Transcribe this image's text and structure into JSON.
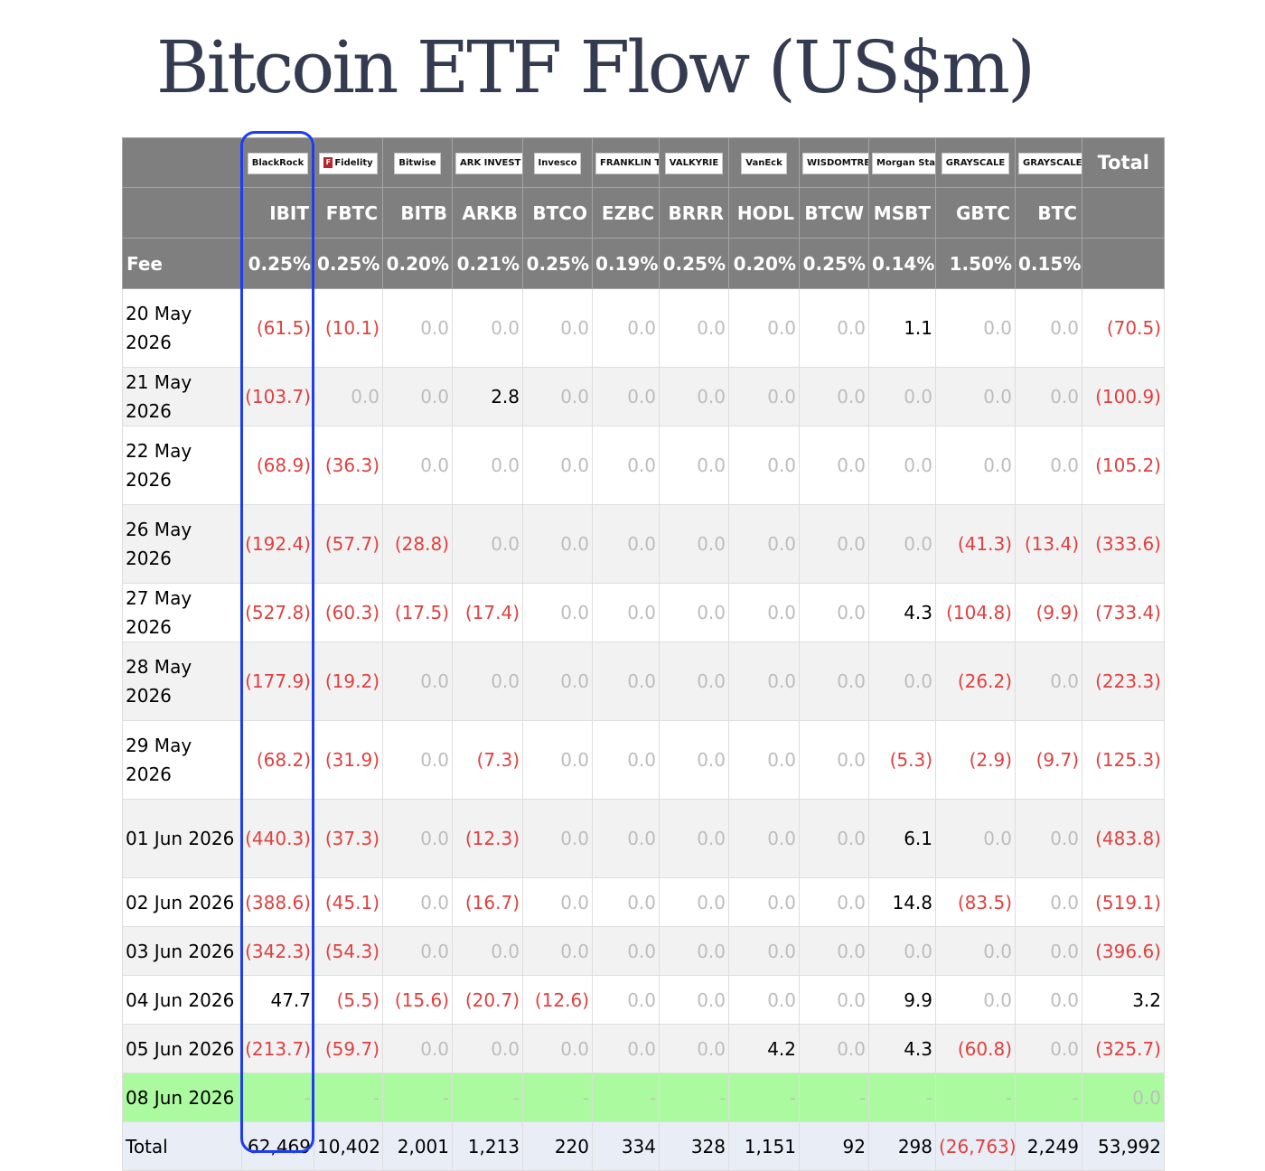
{
  "title": "Bitcoin ETF Flow (US$m)",
  "logos": [
    "BlackRock",
    "Fidelity",
    "Bitwise",
    "ARK INVEST",
    "Invesco",
    "FRANKLIN TEMPLETON",
    "VALKYRIE",
    "VanEck",
    "WISDOMTREE",
    "Morgan Stanley",
    "GRAYSCALE",
    "GRAYSCALE"
  ],
  "total_header": "Total",
  "tickers": [
    "IBIT",
    "FBTC",
    "BITB",
    "ARKB",
    "BTCO",
    "EZBC",
    "BRRR",
    "HODL",
    "BTCW",
    "MSBT",
    "GBTC",
    "BTC"
  ],
  "fee_label": "Fee",
  "fees": [
    "0.25%",
    "0.25%",
    "0.20%",
    "0.21%",
    "0.25%",
    "0.19%",
    "0.25%",
    "0.20%",
    "0.25%",
    "0.14%",
    "1.50%",
    "0.15%"
  ],
  "rows": [
    {
      "date": "20 May 2026",
      "values": [
        "(61.5)",
        "(10.1)",
        "0.0",
        "0.0",
        "0.0",
        "0.0",
        "0.0",
        "0.0",
        "0.0",
        "1.1",
        "0.0",
        "0.0"
      ],
      "total": "(70.5)"
    },
    {
      "date": "21 May 2026",
      "values": [
        "(103.7)",
        "0.0",
        "0.0",
        "2.8",
        "0.0",
        "0.0",
        "0.0",
        "0.0",
        "0.0",
        "0.0",
        "0.0",
        "0.0"
      ],
      "total": "(100.9)"
    },
    {
      "date": "22 May 2026",
      "values": [
        "(68.9)",
        "(36.3)",
        "0.0",
        "0.0",
        "0.0",
        "0.0",
        "0.0",
        "0.0",
        "0.0",
        "0.0",
        "0.0",
        "0.0"
      ],
      "total": "(105.2)"
    },
    {
      "date": "26 May 2026",
      "values": [
        "(192.4)",
        "(57.7)",
        "(28.8)",
        "0.0",
        "0.0",
        "0.0",
        "0.0",
        "0.0",
        "0.0",
        "0.0",
        "(41.3)",
        "(13.4)"
      ],
      "total": "(333.6)"
    },
    {
      "date": "27 May 2026",
      "values": [
        "(527.8)",
        "(60.3)",
        "(17.5)",
        "(17.4)",
        "0.0",
        "0.0",
        "0.0",
        "0.0",
        "0.0",
        "4.3",
        "(104.8)",
        "(9.9)"
      ],
      "total": "(733.4)"
    },
    {
      "date": "28 May 2026",
      "values": [
        "(177.9)",
        "(19.2)",
        "0.0",
        "0.0",
        "0.0",
        "0.0",
        "0.0",
        "0.0",
        "0.0",
        "0.0",
        "(26.2)",
        "0.0"
      ],
      "total": "(223.3)"
    },
    {
      "date": "29 May 2026",
      "values": [
        "(68.2)",
        "(31.9)",
        "0.0",
        "(7.3)",
        "0.0",
        "0.0",
        "0.0",
        "0.0",
        "0.0",
        "(5.3)",
        "(2.9)",
        "(9.7)"
      ],
      "total": "(125.3)"
    },
    {
      "date": "01 Jun 2026",
      "values": [
        "(440.3)",
        "(37.3)",
        "0.0",
        "(12.3)",
        "0.0",
        "0.0",
        "0.0",
        "0.0",
        "0.0",
        "6.1",
        "0.0",
        "0.0"
      ],
      "total": "(483.8)"
    },
    {
      "date": "02 Jun 2026",
      "values": [
        "(388.6)",
        "(45.1)",
        "0.0",
        "(16.7)",
        "0.0",
        "0.0",
        "0.0",
        "0.0",
        "0.0",
        "14.8",
        "(83.5)",
        "0.0"
      ],
      "total": "(519.1)"
    },
    {
      "date": "03 Jun 2026",
      "values": [
        "(342.3)",
        "(54.3)",
        "0.0",
        "0.0",
        "0.0",
        "0.0",
        "0.0",
        "0.0",
        "0.0",
        "0.0",
        "0.0",
        "0.0"
      ],
      "total": "(396.6)"
    },
    {
      "date": "04 Jun 2026",
      "values": [
        "47.7",
        "(5.5)",
        "(15.6)",
        "(20.7)",
        "(12.6)",
        "0.0",
        "0.0",
        "0.0",
        "0.0",
        "9.9",
        "0.0",
        "0.0"
      ],
      "total": "3.2"
    },
    {
      "date": "05 Jun 2026",
      "values": [
        "(213.7)",
        "(59.7)",
        "0.0",
        "0.0",
        "0.0",
        "0.0",
        "0.0",
        "4.2",
        "0.0",
        "4.3",
        "(60.8)",
        "0.0"
      ],
      "total": "(325.7)"
    },
    {
      "date": "08 Jun 2026",
      "values": [
        "-",
        "-",
        "-",
        "-",
        "-",
        "-",
        "-",
        "-",
        "-",
        "-",
        "-",
        "-"
      ],
      "total": "0.0"
    }
  ],
  "total_row": {
    "label": "Total",
    "values": [
      "62,469",
      "10,402",
      "2,001",
      "1,213",
      "220",
      "334",
      "328",
      "1,151",
      "92",
      "298",
      "(26,763)",
      "2,249"
    ],
    "total": "53,992"
  },
  "colors": {
    "header_bg": "#7f7f7f",
    "negative": "#e0403f",
    "zero": "#bdbdbd",
    "highlight_row": "#acfaa0",
    "total_row": "#e8edf6",
    "highlight_box": "#1d3df2"
  }
}
